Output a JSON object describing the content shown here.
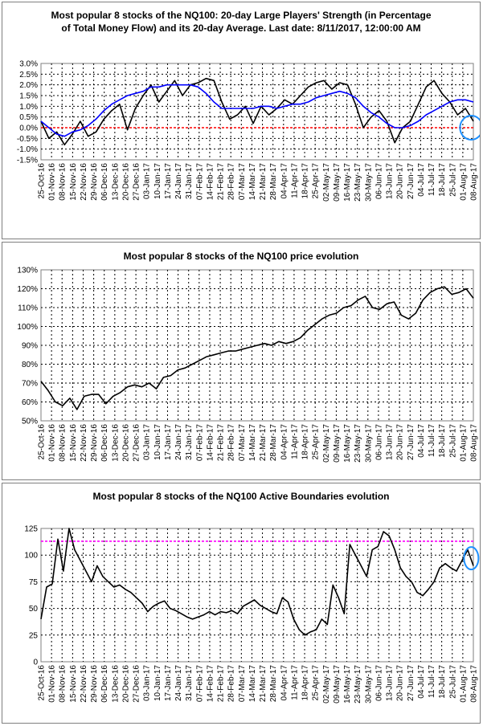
{
  "charts": [
    {
      "type": "line",
      "title": "Most popular 8 stocks of the NQ100: 20-day Large Players' Strength (in Percentage of Total Money Flow) and its 20-day Average. Last date: 8/11/2017, 12:00:00 AM",
      "title_line1": "Most popular 8 stocks of the NQ100: 20-day Large Players' Strength (in Percentage",
      "title_line2": "of Total Money Flow) and its 20-day Average. Last date: 8/11/2017, 12:00:00 AM",
      "ylim": [
        -1.5,
        3.0
      ],
      "y_ticks": [
        "-1.5%",
        "-1.0%",
        "-0.5%",
        "0.0%",
        "0.5%",
        "1.0%",
        "1.5%",
        "2.0%",
        "2.5%",
        "3.0%"
      ],
      "x_ticks": [
        "25-Oct-16",
        "01-Nov-16",
        "08-Nov-16",
        "15-Nov-16",
        "22-Nov-16",
        "29-Nov-16",
        "06-Dec-16",
        "13-Dec-16",
        "20-Dec-16",
        "27-Dec-16",
        "03-Jan-17",
        "10-Jan-17",
        "17-Jan-17",
        "24-Jan-17",
        "31-Jan-17",
        "07-Feb-17",
        "14-Feb-17",
        "21-Feb-17",
        "28-Feb-17",
        "07-Mar-17",
        "14-Mar-17",
        "21-Mar-17",
        "28-Mar-17",
        "04-Apr-17",
        "11-Apr-17",
        "18-Apr-17",
        "25-Apr-17",
        "02-May-17",
        "09-May-17",
        "16-May-17",
        "23-May-17",
        "30-May-17",
        "06-Jun-17",
        "13-Jun-17",
        "20-Jun-17",
        "27-Jun-17",
        "04-Jul-17",
        "11-Jul-17",
        "18-Jul-17",
        "25-Jul-17",
        "01-Aug-17",
        "08-Aug-17"
      ],
      "reference_line": {
        "value": 0.0,
        "color": "#ff0000"
      },
      "highlight": {
        "x": 40.8,
        "y": 0.0,
        "color": "#1e90ff"
      },
      "series": [
        {
          "color": "#000000",
          "values": [
            0.3,
            -0.5,
            -0.2,
            -0.8,
            -0.3,
            0.3,
            -0.4,
            -0.2,
            0.4,
            0.8,
            1.1,
            -0.1,
            0.9,
            1.5,
            2.0,
            1.2,
            1.7,
            2.2,
            1.5,
            2.0,
            2.1,
            2.3,
            2.2,
            1.2,
            0.4,
            0.6,
            1.0,
            0.2,
            1.0,
            0.6,
            0.9,
            1.3,
            1.1,
            1.5,
            1.9,
            2.1,
            2.2,
            1.8,
            2.1,
            2.0,
            1.1,
            0.0,
            0.5,
            0.8,
            0.3,
            -0.7,
            0.0,
            0.3,
            1.1,
            1.9,
            2.2,
            1.6,
            1.2,
            0.6,
            0.9,
            0.3
          ]
        },
        {
          "color": "#0000ff",
          "values": [
            0.3,
            0.0,
            -0.3,
            -0.4,
            -0.2,
            -0.1,
            0.1,
            0.4,
            0.8,
            1.1,
            1.3,
            1.5,
            1.6,
            1.7,
            1.9,
            1.9,
            2.0,
            2.0,
            2.0,
            2.0,
            1.9,
            1.6,
            1.2,
            0.9,
            0.9,
            0.9,
            0.9,
            0.9,
            1.0,
            1.0,
            0.9,
            1.0,
            1.1,
            1.1,
            1.2,
            1.4,
            1.5,
            1.6,
            1.7,
            1.6,
            1.4,
            1.0,
            0.7,
            0.5,
            0.2,
            0.0,
            0.0,
            0.1,
            0.3,
            0.6,
            0.8,
            1.0,
            1.2,
            1.3,
            1.3,
            1.2
          ]
        }
      ]
    },
    {
      "type": "line",
      "title": "Most popular 8 stocks of the NQ100 price evolution",
      "ylim": [
        50,
        130
      ],
      "y_ticks": [
        "50%",
        "60%",
        "70%",
        "80%",
        "90%",
        "100%",
        "110%",
        "120%",
        "130%"
      ],
      "x_ticks": [
        "25-Oct-16",
        "01-Nov-16",
        "08-Nov-16",
        "15-Nov-16",
        "22-Nov-16",
        "29-Nov-16",
        "06-Dec-16",
        "13-Dec-16",
        "20-Dec-16",
        "27-Dec-16",
        "03-Jan-17",
        "10-Jan-17",
        "17-Jan-17",
        "24-Jan-17",
        "31-Jan-17",
        "07-Feb-17",
        "14-Feb-17",
        "21-Feb-17",
        "28-Feb-17",
        "07-Mar-17",
        "14-Mar-17",
        "21-Mar-17",
        "28-Mar-17",
        "04-Apr-17",
        "11-Apr-17",
        "18-Apr-17",
        "25-Apr-17",
        "02-May-17",
        "09-May-17",
        "16-May-17",
        "23-May-17",
        "30-May-17",
        "06-Jun-17",
        "13-Jun-17",
        "20-Jun-17",
        "27-Jun-17",
        "04-Jul-17",
        "11-Jul-17",
        "18-Jul-17",
        "25-Jul-17",
        "01-Aug-17",
        "08-Aug-17"
      ],
      "series": [
        {
          "color": "#000000",
          "values": [
            71,
            66,
            60,
            58,
            62,
            56,
            63,
            64,
            64,
            59,
            63,
            65,
            68,
            69,
            68,
            70,
            67,
            73,
            74,
            77,
            78,
            80,
            82,
            84,
            85,
            86,
            87,
            87,
            88,
            89,
            90,
            91,
            90,
            92,
            91,
            92,
            94,
            98,
            101,
            104,
            106,
            107,
            110,
            111,
            114,
            116,
            110,
            109,
            112,
            113,
            106,
            104,
            107,
            114,
            118,
            120,
            121,
            117,
            118,
            120,
            115
          ]
        }
      ]
    },
    {
      "type": "line",
      "title": "Most popular 8 stocks of the NQ100 Active Boundaries evolution",
      "ylim": [
        0,
        125
      ],
      "y_ticks": [
        "0",
        "25",
        "50",
        "75",
        "100",
        "125"
      ],
      "x_ticks": [
        "25-Oct-16",
        "01-Nov-16",
        "08-Nov-16",
        "15-Nov-16",
        "22-Nov-16",
        "29-Nov-16",
        "06-Dec-16",
        "13-Dec-16",
        "20-Dec-16",
        "27-Dec-16",
        "03-Jan-17",
        "10-Jan-17",
        "17-Jan-17",
        "24-Jan-17",
        "31-Jan-17",
        "07-Feb-17",
        "14-Feb-17",
        "21-Feb-17",
        "28-Feb-17",
        "07-Mar-17",
        "14-Mar-17",
        "21-Mar-17",
        "28-Mar-17",
        "04-Apr-17",
        "11-Apr-17",
        "18-Apr-17",
        "25-Apr-17",
        "02-May-17",
        "09-May-17",
        "16-May-17",
        "23-May-17",
        "30-May-17",
        "06-Jun-17",
        "13-Jun-17",
        "20-Jun-17",
        "27-Jun-17",
        "04-Jul-17",
        "11-Jul-17",
        "18-Jul-17",
        "25-Jul-17",
        "01-Aug-17",
        "08-Aug-17"
      ],
      "reference_line": {
        "value": 113,
        "color": "#ff00ff"
      },
      "highlight": {
        "x": 40.8,
        "y": 97,
        "color": "#1e90ff"
      },
      "series": [
        {
          "color": "#000000",
          "values": [
            40,
            70,
            73,
            115,
            85,
            125,
            105,
            95,
            85,
            75,
            90,
            80,
            75,
            70,
            72,
            68,
            65,
            60,
            55,
            47,
            52,
            55,
            57,
            50,
            48,
            45,
            42,
            40,
            42,
            44,
            47,
            44,
            47,
            46,
            48,
            45,
            52,
            55,
            58,
            53,
            50,
            47,
            45,
            60,
            56,
            40,
            30,
            25,
            28,
            30,
            40,
            35,
            72,
            60,
            45,
            110,
            100,
            90,
            80,
            105,
            108,
            122,
            118,
            105,
            88,
            80,
            75,
            65,
            62,
            68,
            75,
            88,
            92,
            88,
            85,
            95,
            105,
            90
          ]
        }
      ]
    }
  ]
}
